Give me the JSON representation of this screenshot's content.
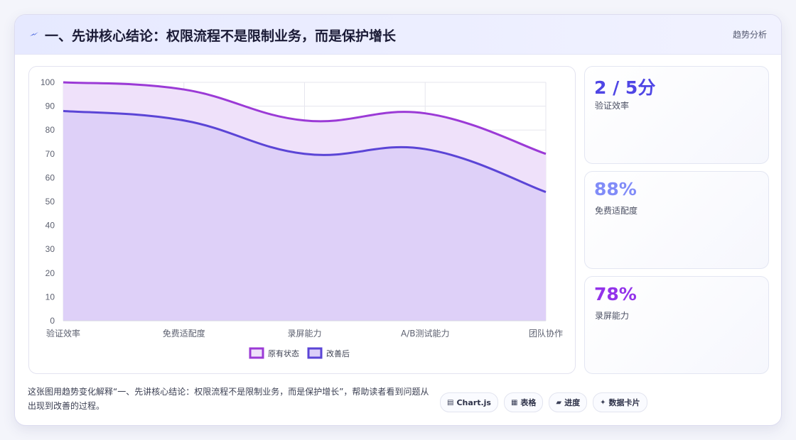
{
  "header": {
    "title": "一、先讲核心结论：权限流程不是限制业务，而是保护增长",
    "tag": "趋势分析"
  },
  "chart_data": {
    "type": "area",
    "categories": [
      "验证效率",
      "免费适配度",
      "录屏能力",
      "A/B测试能力",
      "团队协作"
    ],
    "series": [
      {
        "name": "原有状态",
        "values": [
          100,
          97,
          84,
          87,
          70
        ],
        "color": "#9b3ad6",
        "fill": "#efe1fa"
      },
      {
        "name": "改善后",
        "values": [
          88,
          84,
          70,
          72,
          54
        ],
        "color": "#5b45d6",
        "fill": "#dccff8"
      }
    ],
    "ylim": [
      0,
      100
    ],
    "yticks": [
      0,
      10,
      20,
      30,
      40,
      50,
      60,
      70,
      80,
      90,
      100
    ],
    "grid": true,
    "legend": "bottom"
  },
  "stats": [
    {
      "value": "2 / 5分",
      "label": "验证效率",
      "color": "#4f46e5"
    },
    {
      "value": "88%",
      "label": "免费适配度",
      "color": "#818cf8"
    },
    {
      "value": "78%",
      "label": "录屏能力",
      "color": "#9333ea"
    }
  ],
  "footer": {
    "text": "这张图用趋势变化解释“一、先讲核心结论：权限流程不是限制业务，而是保护增长”，帮助读者看到问题从出现到改善的过程。",
    "chips": [
      {
        "icon": "chart-icon",
        "glyph": "▤",
        "label": "Chart.js"
      },
      {
        "icon": "table-icon",
        "glyph": "▦",
        "label": "表格"
      },
      {
        "icon": "progress-icon",
        "glyph": "▰",
        "label": "进度"
      },
      {
        "icon": "sparkle-icon",
        "glyph": "✦",
        "label": "数据卡片"
      }
    ]
  }
}
